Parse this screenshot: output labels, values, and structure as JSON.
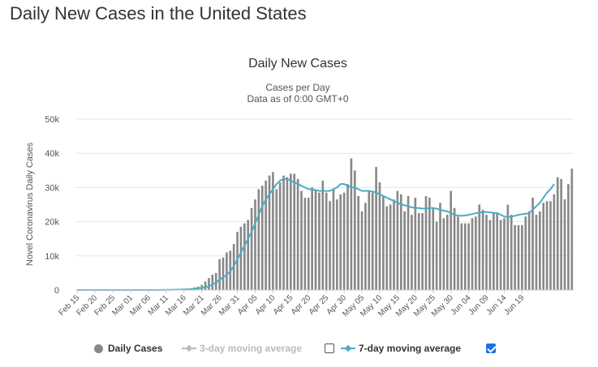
{
  "page": {
    "heading": "Daily New Cases in the United States"
  },
  "colors": {
    "bar": "#888888",
    "avg7": "#4bacc6",
    "avg3": "#bbbbbb",
    "grid": "#e6e6e6",
    "text": "#333333",
    "check": "#1a73e8"
  },
  "legend": {
    "daily_cases": "Daily Cases",
    "avg3_label": "3-day moving average",
    "avg3_checked": false,
    "avg7_label": "7-day moving average",
    "avg7_checked": true
  },
  "chart_data": {
    "type": "bar",
    "title": "Daily New Cases",
    "subtitle": [
      "Cases per Day",
      "Data as of 0:00 GMT+0"
    ],
    "ylabel": "Novel Coronavirus Daily Cases",
    "xlabel": "",
    "ylim": [
      0,
      50000
    ],
    "yticks": [
      0,
      10000,
      20000,
      30000,
      40000,
      50000
    ],
    "ytick_labels": [
      "0",
      "10k",
      "20k",
      "30k",
      "40k",
      "50k"
    ],
    "grid": true,
    "legend_position": "bottom",
    "x_tick_labels": [
      "Feb 15",
      "Feb 20",
      "Feb 25",
      "Mar 01",
      "Mar 06",
      "Mar 11",
      "Mar 16",
      "Mar 21",
      "Mar 26",
      "Mar 31",
      "Apr 05",
      "Apr 10",
      "Apr 15",
      "Apr 20",
      "Apr 25",
      "Apr 30",
      "May 05",
      "May 10",
      "May 15",
      "May 20",
      "May 25",
      "May 30",
      "Jun 04",
      "Jun 09",
      "Jun 14",
      "Jun 19"
    ],
    "x_tick_every": 5,
    "series": [
      {
        "name": "Daily Cases",
        "kind": "bar",
        "values": [
          0,
          0,
          0,
          0,
          0,
          0,
          0,
          0,
          0,
          0,
          0,
          0,
          0,
          0,
          0,
          0,
          0,
          0,
          10,
          20,
          20,
          15,
          40,
          70,
          100,
          120,
          160,
          200,
          250,
          300,
          350,
          450,
          550,
          800,
          1000,
          1500,
          2500,
          3500,
          4500,
          5000,
          9000,
          9500,
          11000,
          11500,
          13500,
          17000,
          18500,
          19500,
          20500,
          24000,
          26500,
          29500,
          30500,
          32000,
          33500,
          34500,
          29500,
          31500,
          33500,
          33000,
          34000,
          34000,
          32500,
          29000,
          27000,
          27000,
          30000,
          29500,
          28500,
          32000,
          28500,
          26000,
          29500,
          26500,
          28000,
          28500,
          31000,
          38500,
          35000,
          27500,
          23000,
          25500,
          29000,
          28500,
          36000,
          31500,
          27500,
          24500,
          25000,
          26500,
          29000,
          28000,
          23000,
          27500,
          22000,
          27000,
          22500,
          22500,
          27500,
          27000,
          24000,
          20000,
          25500,
          21000,
          22000,
          29000,
          24000,
          21500,
          19500,
          19500,
          19500,
          21000,
          21500,
          25000,
          23500,
          22000,
          20500,
          22500,
          22500,
          20500,
          21000,
          25000,
          22000,
          19000,
          19000,
          19000,
          21500,
          23000,
          27000,
          22000,
          23000,
          25500,
          26000,
          26000,
          28000,
          33000,
          32500,
          26500,
          31000,
          35500
        ]
      },
      {
        "name": "7-day moving average",
        "kind": "line",
        "values": [
          0,
          0,
          0,
          0,
          0,
          0,
          0,
          0,
          0,
          0,
          0,
          0,
          0,
          0,
          0,
          0,
          0,
          0,
          0,
          0,
          0,
          0,
          10,
          20,
          30,
          50,
          70,
          90,
          110,
          140,
          170,
          200,
          250,
          350,
          500,
          650,
          800,
          1100,
          1600,
          2200,
          3000,
          3700,
          4500,
          5500,
          7000,
          9000,
          11000,
          13000,
          15000,
          17000,
          19500,
          22000,
          24500,
          26500,
          28000,
          29500,
          31000,
          32000,
          32500,
          32500,
          32000,
          31500,
          31000,
          30500,
          30000,
          29500,
          29500,
          29200,
          29000,
          29000,
          29000,
          29000,
          29500,
          30000,
          31000,
          31000,
          30500,
          30000,
          30000,
          29500,
          29000,
          29000,
          29000,
          28800,
          28500,
          28000,
          27500,
          27000,
          26500,
          26000,
          25500,
          25000,
          24800,
          24500,
          24200,
          24000,
          24000,
          23800,
          23800,
          24000,
          24000,
          23800,
          23500,
          23200,
          23000,
          22500,
          22000,
          21800,
          21700,
          21800,
          22000,
          22200,
          22500,
          22600,
          22800,
          22800,
          22700,
          22600,
          22500,
          22000,
          21500,
          21300,
          21500,
          21700,
          22000,
          22200,
          22300,
          22500,
          23500,
          24500,
          25500,
          27000,
          28500,
          29500,
          31000
        ]
      }
    ]
  }
}
